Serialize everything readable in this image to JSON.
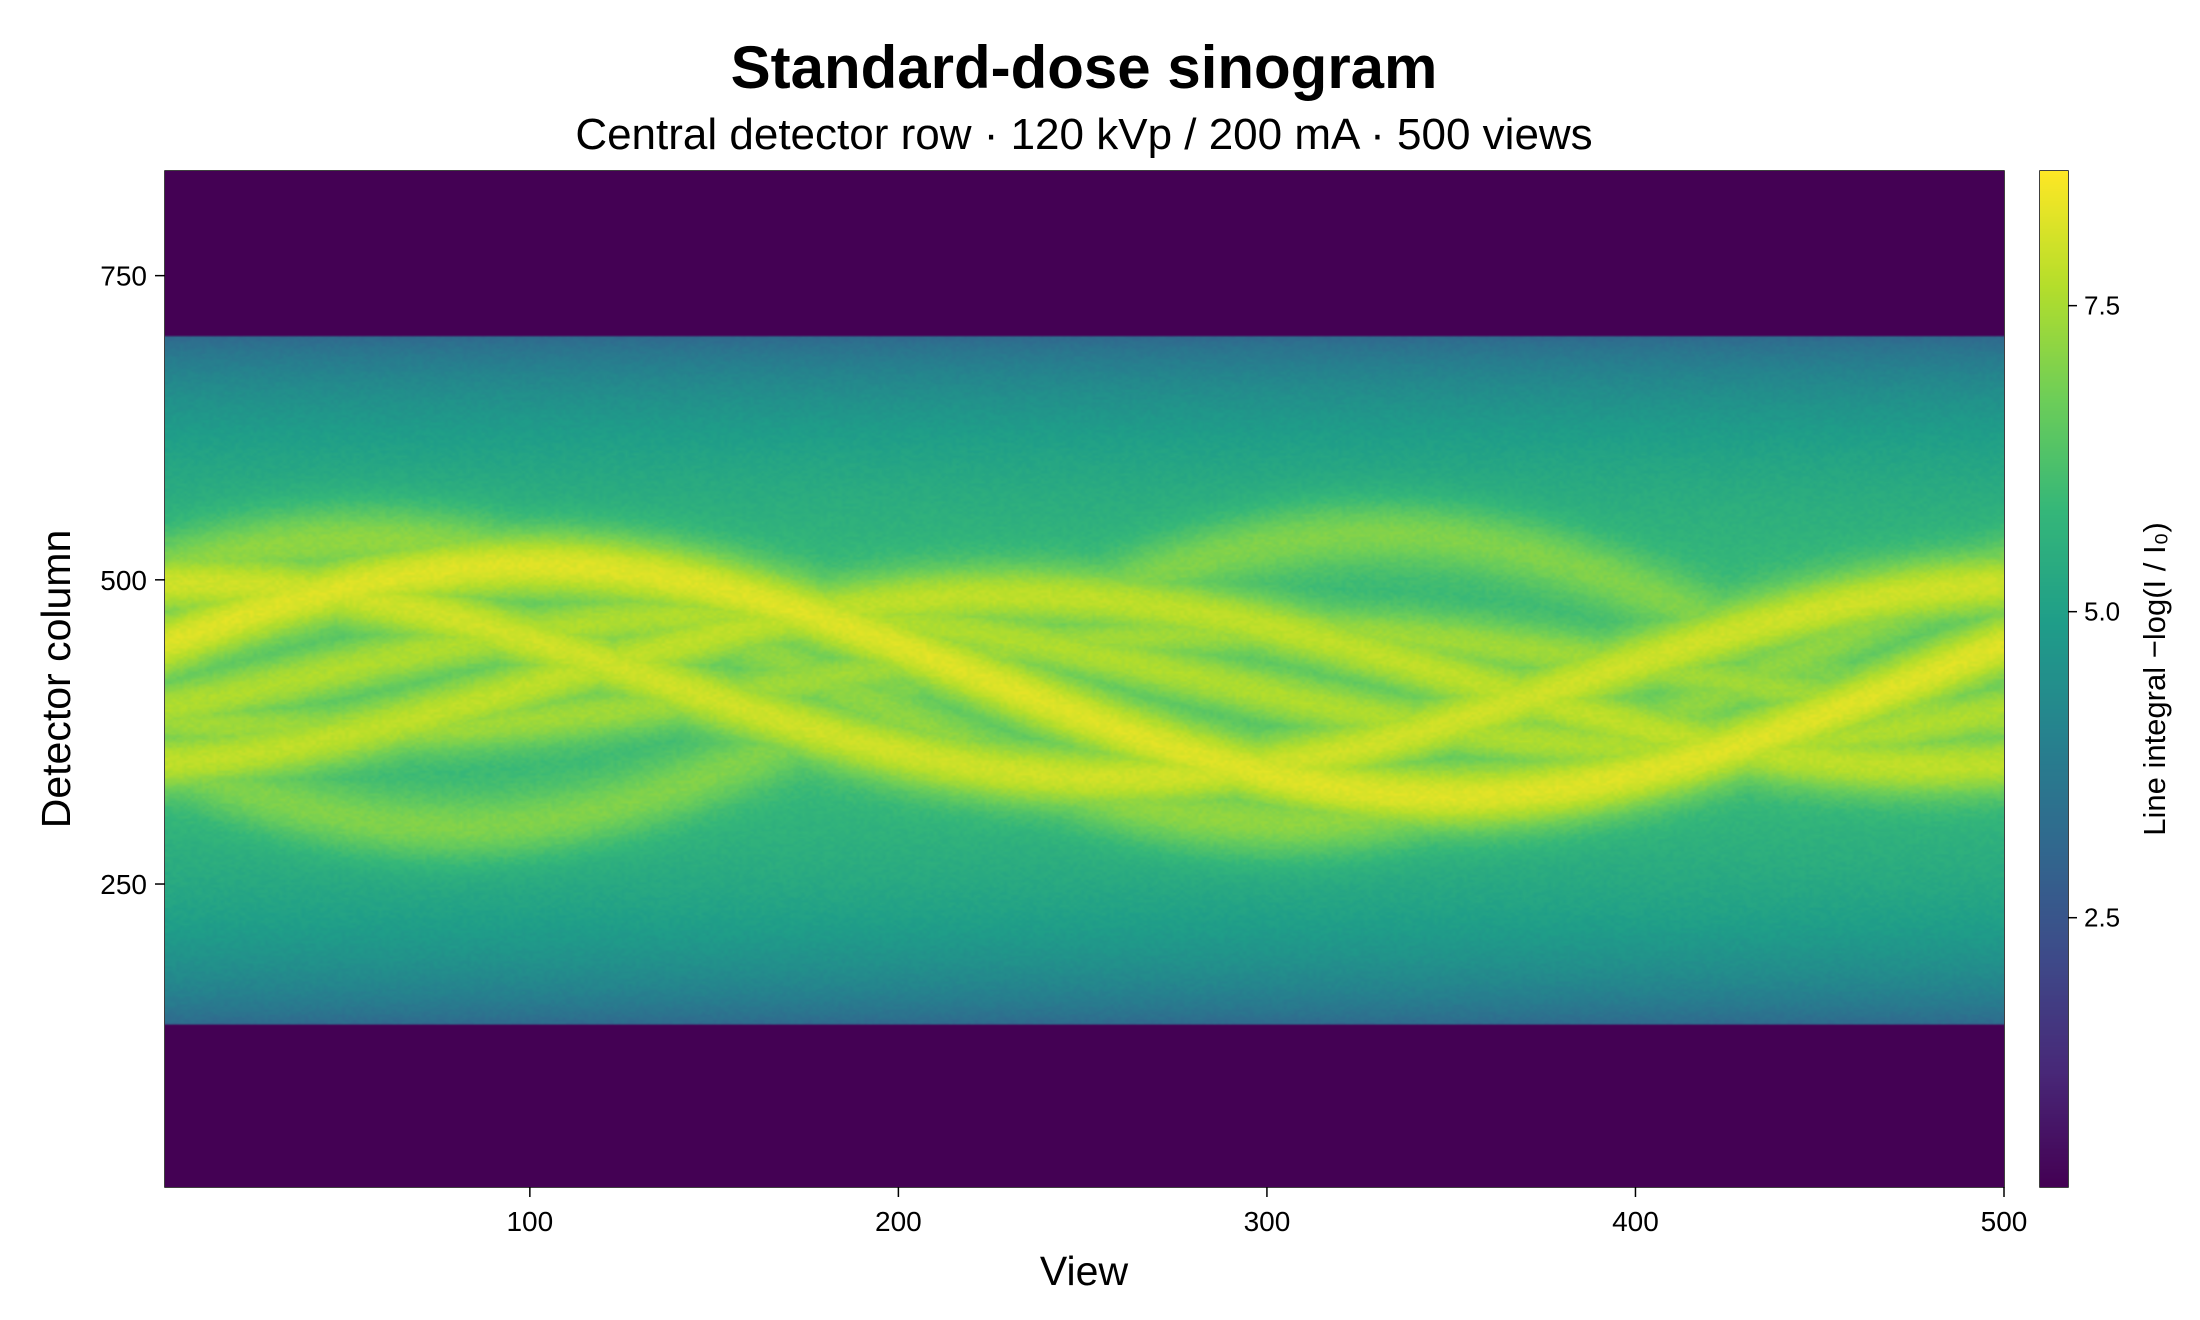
{
  "chart_data": {
    "type": "heatmap",
    "title": "Standard-dose sinogram",
    "subtitle": "Central detector row · 120 kVp / 200 mA · 500 views",
    "xlabel": "View",
    "ylabel": "Detector column",
    "colorbar_label": "Line integral  −log(I / I₀)",
    "xlim": [
      1,
      500
    ],
    "ylim": [
      1,
      836
    ],
    "clim": [
      0.3,
      8.6
    ],
    "x_ticks": [
      100,
      200,
      300,
      400,
      500
    ],
    "y_ticks": [
      250,
      500,
      750
    ],
    "colorbar_ticks": [
      2.5,
      5.0,
      7.5
    ],
    "x_tick_labels": [
      "100",
      "200",
      "300",
      "400",
      "500"
    ],
    "y_tick_labels": [
      "250",
      "500",
      "750"
    ],
    "colorbar_tick_labels": [
      "2.5",
      "5.0",
      "7.5"
    ],
    "colormap": "viridis",
    "grid": false,
    "field_of_view_detector_rows": [
      135,
      700
    ],
    "background_value": 0.3,
    "body_profile": {
      "edge_value": 2.0,
      "center_value": 6.0,
      "center_row": 417
    },
    "sinusoid_traces": [
      {
        "center": 417,
        "amplitude": 95,
        "phase_view": 100,
        "peak_value": 8.2,
        "width": 30
      },
      {
        "center": 417,
        "amplitude": 80,
        "phase_view": 10,
        "peak_value": 8.0,
        "width": 28
      },
      {
        "center": 417,
        "amplitude": 70,
        "phase_view": 230,
        "peak_value": 7.8,
        "width": 26
      },
      {
        "center": 417,
        "amplitude": 55,
        "phase_view": 160,
        "peak_value": 7.6,
        "width": 24
      },
      {
        "center": 417,
        "amplitude": 115,
        "phase_view": 55,
        "peak_value": 7.2,
        "width": 30
      },
      {
        "center": 417,
        "amplitude": 120,
        "phase_view": 330,
        "peak_value": 7.0,
        "width": 28
      },
      {
        "center": 417,
        "amplitude": 40,
        "phase_view": 300,
        "peak_value": 7.4,
        "width": 22
      }
    ]
  },
  "colors": {
    "viridis_stops": [
      "#440154",
      "#482878",
      "#3e4a89",
      "#31688e",
      "#26828e",
      "#1f9e89",
      "#35b779",
      "#6ece58",
      "#b5de2b",
      "#fde725"
    ],
    "frame": "#000000"
  }
}
